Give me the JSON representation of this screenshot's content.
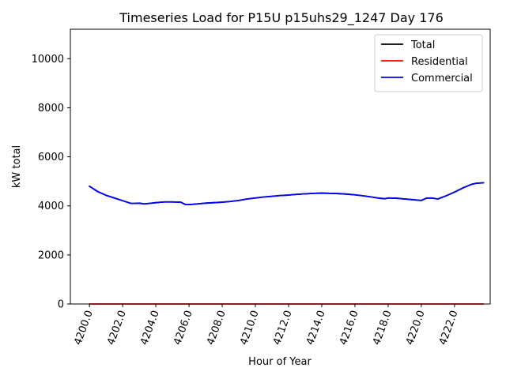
{
  "chart_data": {
    "type": "line",
    "title": "Timeseries Load for P15U p15uhs29_1247  Day 176",
    "xlabel": "Hour of Year",
    "ylabel": "kW total",
    "xlim": [
      4198.85,
      4224.15
    ],
    "ylim": [
      0,
      11200
    ],
    "xticks": [
      4200,
      4202,
      4204,
      4206,
      4208,
      4210,
      4212,
      4214,
      4216,
      4218,
      4220,
      4222
    ],
    "xtick_labels": [
      "4200.0",
      "4202.0",
      "4204.0",
      "4206.0",
      "4208.0",
      "4210.0",
      "4212.0",
      "4214.0",
      "4216.0",
      "4218.0",
      "4220.0",
      "4222.0"
    ],
    "yticks": [
      0,
      2000,
      4000,
      6000,
      8000,
      10000
    ],
    "ytick_labels": [
      "0",
      "2000",
      "4000",
      "6000",
      "8000",
      "10000"
    ],
    "legend_position": "top-right",
    "x": [
      4200,
      4200.5,
      4201,
      4201.5,
      4202,
      4202.5,
      4202.7,
      4203,
      4203.3,
      4203.6,
      4204,
      4204.5,
      4205,
      4205.5,
      4205.8,
      4206,
      4206.5,
      4207,
      4207.5,
      4208,
      4208.5,
      4209,
      4209.5,
      4210,
      4210.5,
      4211,
      4211.5,
      4212,
      4212.5,
      4213,
      4213.5,
      4214,
      4214.5,
      4215,
      4215.5,
      4216,
      4216.5,
      4217,
      4217.5,
      4217.8,
      4218,
      4218.5,
      4219,
      4219.5,
      4220,
      4220.3,
      4220.6,
      4221,
      4221.5,
      4222,
      4222.5,
      4223,
      4223.3,
      4223.75
    ],
    "series": [
      {
        "name": "Total",
        "color": "#000000",
        "values": [
          4800,
          4580,
          4430,
          4320,
          4210,
          4100,
          4100,
          4110,
          4080,
          4100,
          4130,
          4160,
          4160,
          4150,
          4050,
          4050,
          4080,
          4110,
          4130,
          4150,
          4180,
          4220,
          4280,
          4320,
          4360,
          4390,
          4420,
          4440,
          4470,
          4490,
          4510,
          4520,
          4510,
          4500,
          4480,
          4450,
          4410,
          4360,
          4310,
          4290,
          4320,
          4310,
          4280,
          4250,
          4220,
          4310,
          4320,
          4280,
          4410,
          4560,
          4730,
          4870,
          4920,
          4940
        ]
      },
      {
        "name": "Residential",
        "color": "#ff0000",
        "values": [
          0,
          0,
          0,
          0,
          0,
          0,
          0,
          0,
          0,
          0,
          0,
          0,
          0,
          0,
          0,
          0,
          0,
          0,
          0,
          0,
          0,
          0,
          0,
          0,
          0,
          0,
          0,
          0,
          0,
          0,
          0,
          0,
          0,
          0,
          0,
          0,
          0,
          0,
          0,
          0,
          0,
          0,
          0,
          0,
          0,
          0,
          0,
          0,
          0,
          0,
          0,
          0,
          0,
          0
        ]
      },
      {
        "name": "Commercial",
        "color": "#0000ff",
        "values": [
          4800,
          4580,
          4430,
          4320,
          4210,
          4100,
          4100,
          4110,
          4080,
          4100,
          4130,
          4160,
          4160,
          4150,
          4050,
          4050,
          4080,
          4110,
          4130,
          4150,
          4180,
          4220,
          4280,
          4320,
          4360,
          4390,
          4420,
          4440,
          4470,
          4490,
          4510,
          4520,
          4510,
          4500,
          4480,
          4450,
          4410,
          4360,
          4310,
          4290,
          4320,
          4310,
          4280,
          4250,
          4220,
          4310,
          4320,
          4280,
          4410,
          4560,
          4730,
          4870,
          4920,
          4940
        ]
      }
    ]
  }
}
